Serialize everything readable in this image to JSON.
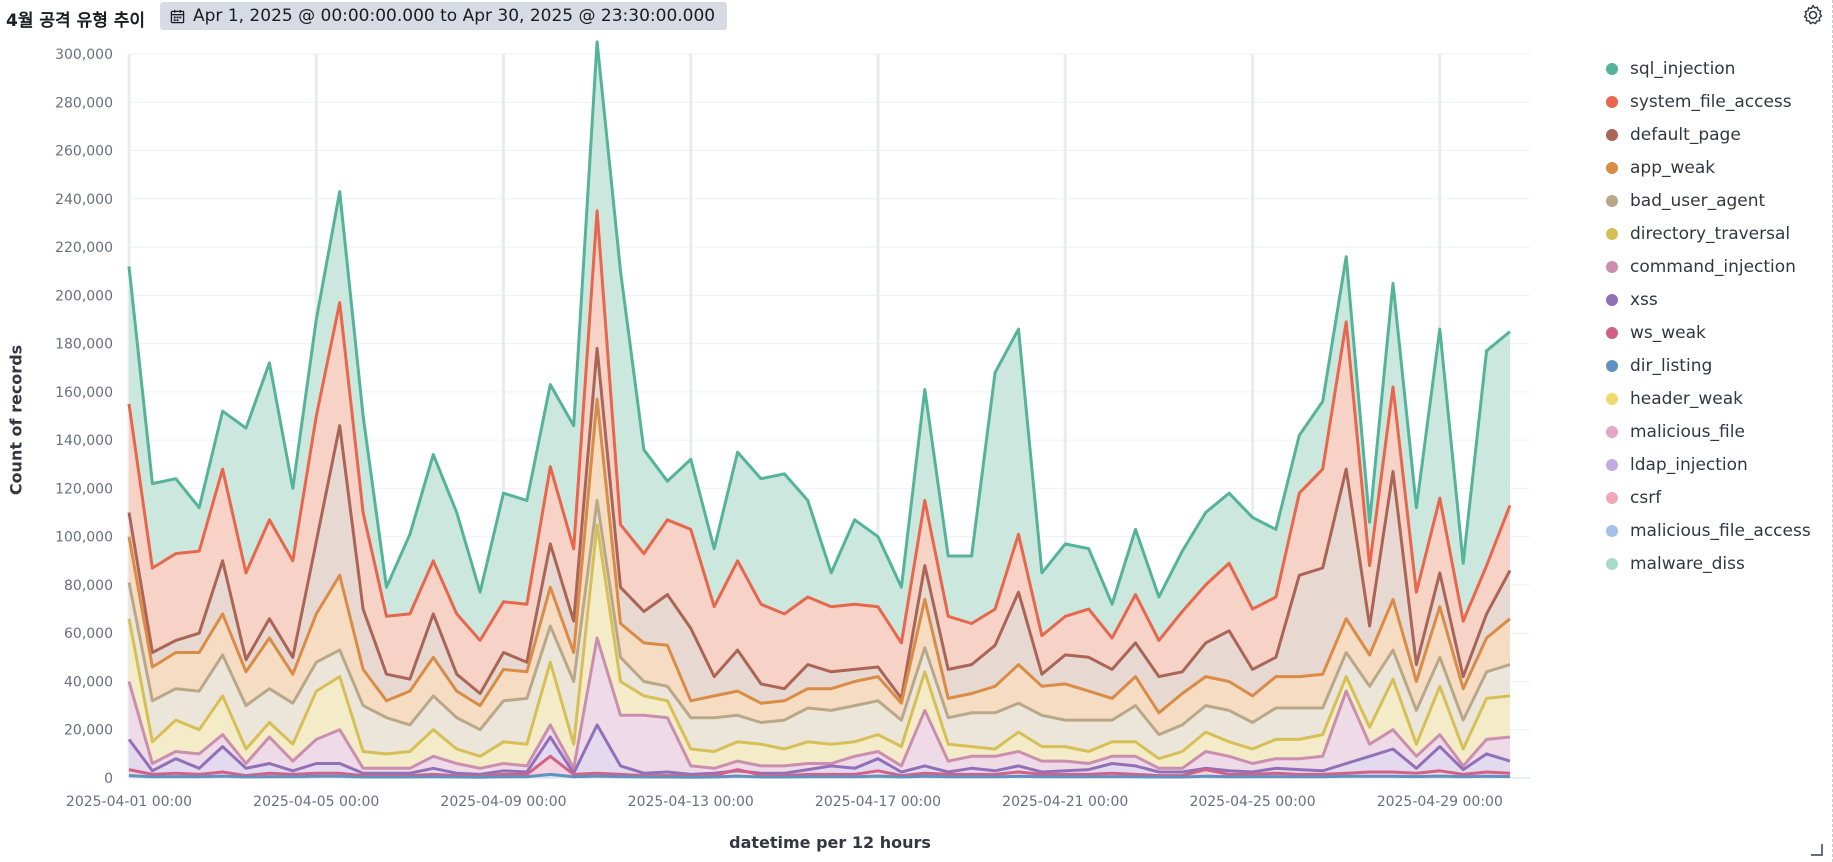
{
  "panel": {
    "title": "4월 공격 유형 추이",
    "time_range": "Apr 1, 2025 @ 00:00:00.000 to Apr 30, 2025 @ 23:30:00.000",
    "icons": {
      "calendar": "calendar-icon",
      "settings": "gear-icon",
      "resize": "resize-handle-icon"
    }
  },
  "chart_data": {
    "type": "area",
    "stacked": true,
    "xlabel": "datetime per 12 hours",
    "ylabel": "Count of records",
    "ylim": [
      0,
      300000
    ],
    "y_ticks": [
      0,
      20000,
      40000,
      60000,
      80000,
      100000,
      120000,
      140000,
      160000,
      180000,
      200000,
      220000,
      240000,
      260000,
      280000,
      300000
    ],
    "y_tick_labels": [
      "0",
      "20,000",
      "40,000",
      "60,000",
      "80,000",
      "100,000",
      "120,000",
      "140,000",
      "160,000",
      "180,000",
      "200,000",
      "220,000",
      "240,000",
      "260,000",
      "280,000",
      "300,000"
    ],
    "x_tick_labels": [
      "2025-04-01 00:00",
      "2025-04-05 00:00",
      "2025-04-09 00:00",
      "2025-04-13 00:00",
      "2025-04-17 00:00",
      "2025-04-21 00:00",
      "2025-04-25 00:00",
      "2025-04-29 00:00"
    ],
    "x_tick_index": [
      0,
      8,
      16,
      24,
      32,
      40,
      48,
      56
    ],
    "grid": "vertical-major",
    "legend": "right",
    "x_count": 60,
    "x_start": "2025-04-01 00:00",
    "x_interval_hours": 12,
    "cumulative_levels": {
      "malware_diss": [
        212000,
        122000,
        124000,
        112000,
        152000,
        145000,
        172000,
        120000,
        190000,
        243000,
        150000,
        79000,
        101000,
        134000,
        110000,
        77000,
        118000,
        115000,
        163000,
        146000,
        305000,
        210000,
        136000,
        123000,
        132000,
        95000,
        135000,
        124000,
        126000,
        115000,
        85000,
        107000,
        100000,
        79000,
        161000,
        92000,
        92000,
        168000,
        186000,
        85000,
        97000,
        95000,
        72000,
        103000,
        75000,
        94000,
        110000,
        118000,
        108000,
        103000,
        142000,
        156000,
        216000,
        106000,
        205000,
        112000,
        186000,
        89000,
        177000,
        185000
      ],
      "system_file_access": [
        155000,
        87000,
        93000,
        94000,
        128000,
        85000,
        107000,
        90000,
        150000,
        197000,
        110000,
        67000,
        68000,
        90000,
        68000,
        57000,
        73000,
        72000,
        129000,
        95000,
        235000,
        105000,
        93000,
        107000,
        103000,
        71000,
        90000,
        72000,
        68000,
        75000,
        71000,
        72000,
        71000,
        56000,
        115000,
        67000,
        64000,
        70000,
        101000,
        59000,
        67000,
        70000,
        58000,
        76000,
        57000,
        69000,
        80000,
        89000,
        70000,
        75000,
        118000,
        128000,
        189000,
        88000,
        162000,
        77000,
        116000,
        65000,
        88000,
        113000
      ],
      "default_page": [
        110000,
        52000,
        57000,
        60000,
        90000,
        49000,
        66000,
        50000,
        98000,
        146000,
        70000,
        43000,
        41000,
        68000,
        43000,
        35000,
        52000,
        48000,
        97000,
        65000,
        178000,
        79000,
        69000,
        76000,
        62000,
        42000,
        53000,
        39000,
        37000,
        47000,
        44000,
        45000,
        46000,
        33000,
        88000,
        45000,
        47000,
        55000,
        77000,
        43000,
        51000,
        50000,
        45000,
        56000,
        42000,
        44000,
        56000,
        61000,
        45000,
        50000,
        84000,
        87000,
        128000,
        63000,
        127000,
        47000,
        85000,
        42000,
        68000,
        86000
      ],
      "app_weak": [
        100000,
        46000,
        52000,
        52000,
        68000,
        44000,
        58000,
        43000,
        68000,
        84000,
        45000,
        32000,
        36000,
        50000,
        36000,
        30000,
        45000,
        44000,
        79000,
        52000,
        157000,
        64000,
        56000,
        55000,
        32000,
        34000,
        36000,
        31000,
        32000,
        37000,
        37000,
        40000,
        42000,
        31000,
        74000,
        33000,
        35000,
        38000,
        47000,
        38000,
        39000,
        36000,
        33000,
        42000,
        27000,
        35000,
        42000,
        40000,
        34000,
        42000,
        42000,
        43000,
        66000,
        51000,
        74000,
        40000,
        71000,
        37000,
        58000,
        66000
      ],
      "bad_user_agent": [
        81000,
        32000,
        37000,
        36000,
        51000,
        30000,
        37000,
        31000,
        48000,
        53000,
        30000,
        25000,
        22000,
        34000,
        25000,
        20000,
        32000,
        33000,
        63000,
        40000,
        115000,
        50000,
        40000,
        38000,
        25000,
        25000,
        26000,
        23000,
        24000,
        29000,
        28000,
        30000,
        32000,
        24000,
        54000,
        25000,
        27000,
        27000,
        31000,
        26000,
        24000,
        24000,
        24000,
        30000,
        18000,
        22000,
        30000,
        28000,
        23000,
        29000,
        29000,
        29000,
        52000,
        38000,
        53000,
        28000,
        50000,
        24000,
        44000,
        47000
      ],
      "directory_traversal": [
        66000,
        15000,
        24000,
        20000,
        34000,
        12000,
        23000,
        14000,
        36000,
        42000,
        11000,
        10000,
        11000,
        20000,
        12000,
        9000,
        15000,
        14000,
        48000,
        14000,
        105000,
        40000,
        34000,
        32000,
        12000,
        11000,
        15000,
        14000,
        12000,
        15000,
        14000,
        15000,
        18000,
        13000,
        44000,
        14000,
        13000,
        12000,
        19000,
        13000,
        13000,
        11000,
        15000,
        15000,
        8000,
        11000,
        19000,
        15000,
        12000,
        16000,
        16000,
        18000,
        42000,
        21000,
        41000,
        14000,
        38000,
        12000,
        33000,
        34000
      ],
      "command_injection": [
        40000,
        6000,
        11000,
        10000,
        18000,
        6000,
        17000,
        7000,
        16000,
        20000,
        4000,
        4000,
        4000,
        9000,
        6000,
        4000,
        6000,
        5000,
        22000,
        4000,
        58000,
        26000,
        26000,
        25000,
        5000,
        4000,
        7000,
        5000,
        5000,
        6000,
        6000,
        9000,
        11000,
        5000,
        28000,
        7000,
        9000,
        9000,
        11000,
        7000,
        7000,
        6000,
        9000,
        9000,
        4000,
        4000,
        11000,
        9000,
        6000,
        8000,
        8000,
        9000,
        36000,
        14000,
        20000,
        9000,
        18000,
        5000,
        16000,
        17000
      ],
      "xss": [
        16000,
        3000,
        8000,
        4000,
        13000,
        4000,
        6000,
        3000,
        6000,
        6000,
        2000,
        2000,
        2000,
        4000,
        2000,
        1500,
        3000,
        2500,
        17000,
        2000,
        22000,
        5000,
        2000,
        2500,
        1500,
        2000,
        3000,
        2000,
        2000,
        3500,
        5000,
        4000,
        8000,
        2500,
        5000,
        2500,
        4000,
        3000,
        5000,
        2500,
        3000,
        3500,
        6000,
        5000,
        2500,
        2500,
        4000,
        3000,
        2500,
        4000,
        3500,
        3000,
        6000,
        9000,
        12000,
        4000,
        13000,
        3500,
        10000,
        7000
      ],
      "ws_weak": [
        3500,
        1500,
        2000,
        1500,
        2500,
        1000,
        2000,
        1500,
        2000,
        2000,
        1000,
        1000,
        1000,
        1500,
        1000,
        800,
        1500,
        1500,
        9000,
        1500,
        2000,
        1500,
        1000,
        1000,
        800,
        1000,
        3500,
        1200,
        1000,
        1500,
        1500,
        1500,
        3000,
        1000,
        2000,
        1500,
        1500,
        1500,
        2500,
        1500,
        1500,
        1500,
        2000,
        1500,
        1000,
        1000,
        3500,
        1500,
        1500,
        2000,
        1500,
        1500,
        2000,
        2500,
        2500,
        2000,
        3000,
        1500,
        2500,
        2000
      ],
      "dir_listing": [
        1000,
        500,
        600,
        500,
        800,
        400,
        600,
        500,
        700,
        700,
        400,
        400,
        400,
        500,
        400,
        300,
        500,
        500,
        1500,
        500,
        800,
        600,
        400,
        400,
        300,
        400,
        800,
        400,
        400,
        500,
        500,
        500,
        800,
        400,
        700,
        500,
        500,
        500,
        700,
        500,
        500,
        500,
        600,
        500,
        400,
        400,
        700,
        500,
        500,
        600,
        500,
        500,
        700,
        700,
        700,
        600,
        800,
        500,
        700,
        600
      ]
    },
    "series_order": [
      "sql_injection",
      "system_file_access",
      "default_page",
      "app_weak",
      "bad_user_agent",
      "directory_traversal",
      "command_injection",
      "xss",
      "ws_weak",
      "dir_listing",
      "header_weak",
      "malicious_file",
      "ldap_injection",
      "csrf",
      "malicious_file_access",
      "malware_diss"
    ],
    "series_colors": {
      "sql_injection": "#54b399",
      "system_file_access": "#e7664c",
      "default_page": "#aa6556",
      "app_weak": "#da8b45",
      "bad_user_agent": "#b9a888",
      "directory_traversal": "#d6bf57",
      "command_injection": "#ca8eae",
      "xss": "#9170b8",
      "ws_weak": "#d36086",
      "dir_listing": "#6092c0",
      "header_weak": "#f1d86f",
      "malicious_file": "#e4a6c7",
      "ldap_injection": "#c2abe0",
      "csrf": "#f0a8b8",
      "malicious_file_access": "#a3c1e8",
      "malware_diss": "#a4dcc7"
    }
  }
}
